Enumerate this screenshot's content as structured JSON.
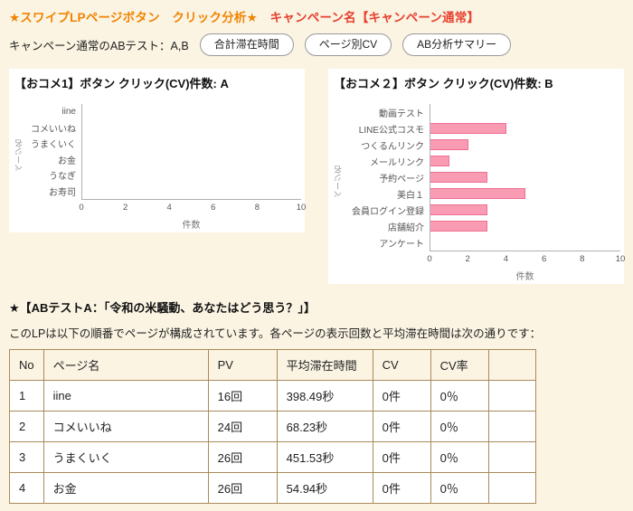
{
  "header": {
    "title_main": "★スワイプLPページボタン　クリック分析★　",
    "title_campaign": "キャンペーン名【キャンペーン通常】",
    "subtitle": "キャンペーン通常のABテスト：A,B",
    "buttons": [
      {
        "label": "合計滞在時間"
      },
      {
        "label": "ページ別CV"
      },
      {
        "label": "AB分析サマリー"
      }
    ]
  },
  "chart_data": [
    {
      "type": "bar",
      "orientation": "horizontal",
      "title": "【おコメ1】ボタン クリック(CV)件数: A",
      "categories": [
        "iine",
        "コメいいね",
        "うまくいく",
        "お金",
        "うなぎ",
        "お寿司"
      ],
      "values": [
        0,
        0,
        0,
        0,
        0,
        0
      ],
      "xlabel": "件数",
      "ylabel": "ページ名",
      "xlim": [
        0,
        10
      ],
      "xticks": [
        0,
        2,
        4,
        6,
        8,
        10
      ],
      "grid": false,
      "bar_color": "#f99cb3",
      "bar_border": "#ee6f94"
    },
    {
      "type": "bar",
      "orientation": "horizontal",
      "title": "【おコメ２】ボタン クリック(CV)件数: B",
      "categories": [
        "動画テスト",
        "LINE公式コスモ",
        "つくるんリンク",
        "メールリンク",
        "予約ページ",
        "美白１",
        "会員ログイン登録",
        "店舗紹介",
        "アンケート"
      ],
      "values": [
        0,
        4,
        2,
        1,
        3,
        5,
        3,
        3,
        0
      ],
      "xlabel": "件数",
      "ylabel": "ページ名",
      "xlim": [
        0,
        10
      ],
      "xticks": [
        0,
        2,
        4,
        6,
        8,
        10
      ],
      "grid": false,
      "bar_color": "#f99cb3",
      "bar_border": "#ee6f94"
    }
  ],
  "analysis": {
    "ab_title": "★【ABテストA：「令和の米騒動、あなたはどう思う？」】",
    "description": "このLPは以下の順番でページが構成されています。各ページの表示回数と平均滞在時間は次の通りです："
  },
  "table": {
    "headers": [
      "No",
      "ページ名",
      "PV",
      "平均滞在時間",
      "CV",
      "CV率",
      ""
    ],
    "rows": [
      [
        "1",
        "iine",
        "16回",
        "398.49秒",
        "0件",
        "0％",
        ""
      ],
      [
        "2",
        "コメいいね",
        "24回",
        "68.23秒",
        "0件",
        "0％",
        ""
      ],
      [
        "3",
        "うまくいく",
        "26回",
        "451.53秒",
        "0件",
        "0％",
        ""
      ],
      [
        "4",
        "お金",
        "26回",
        "54.94秒",
        "0件",
        "0％",
        ""
      ]
    ]
  },
  "colors": {
    "page_background": "#fbf4e3",
    "title_orange": "#f08300",
    "title_red": "#e6402e",
    "bar_fill": "#f99cb3",
    "bar_stroke": "#ee6f94",
    "table_border": "#a98a5b"
  }
}
